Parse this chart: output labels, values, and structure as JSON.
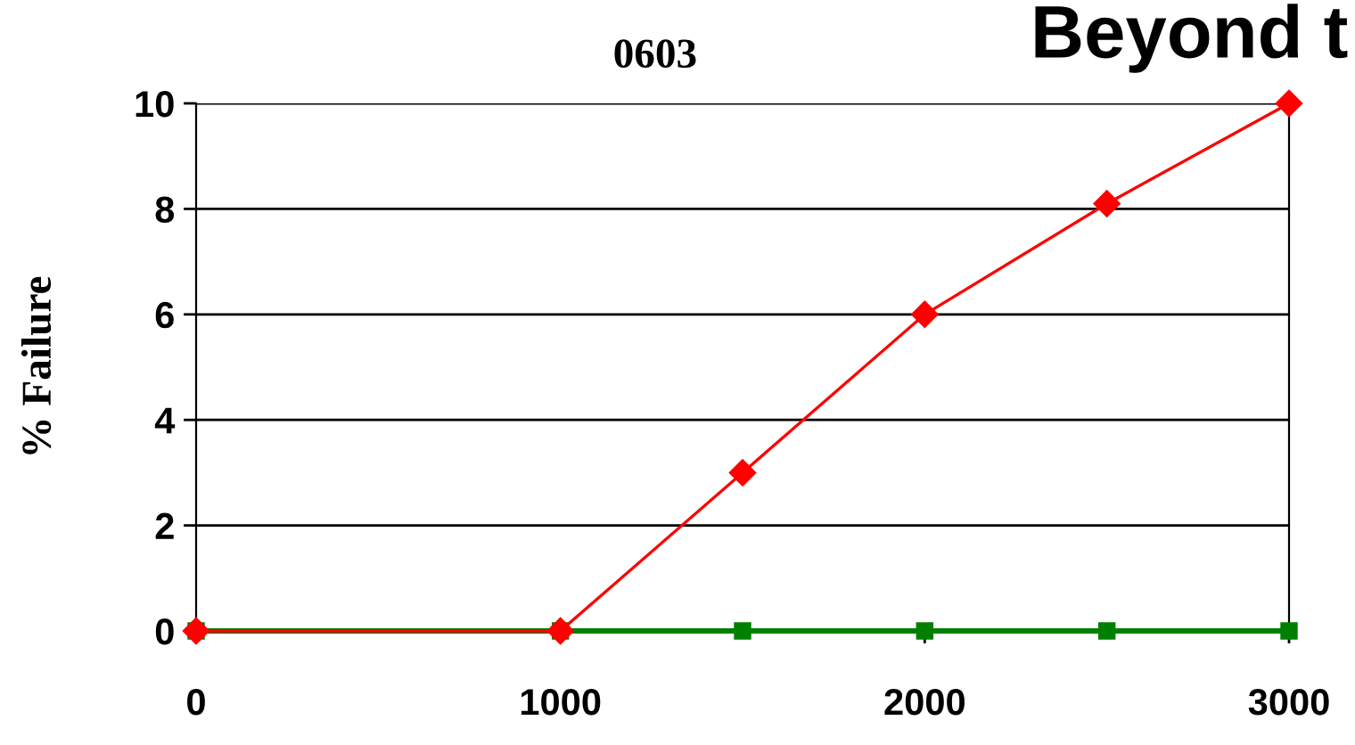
{
  "chart_data": {
    "type": "line",
    "title": "0603",
    "ylabel": "% Failure",
    "annotations": [
      "Beyond t"
    ],
    "x": [
      0,
      1000,
      1500,
      2000,
      2500,
      3000
    ],
    "series": [
      {
        "color": "#008000",
        "marker": "square",
        "values": [
          0,
          0,
          0,
          0,
          0,
          0
        ]
      },
      {
        "color": "#ff0000",
        "marker": "diamond",
        "values": [
          0,
          0,
          3,
          6,
          8.1,
          10
        ]
      }
    ],
    "xlim": [
      0,
      3000
    ],
    "xticks": [
      0,
      1000,
      2000,
      3000
    ],
    "ylim": [
      0,
      10
    ],
    "yticks": [
      0,
      2,
      4,
      6,
      8,
      10
    ],
    "grid": "y",
    "legend": false
  }
}
